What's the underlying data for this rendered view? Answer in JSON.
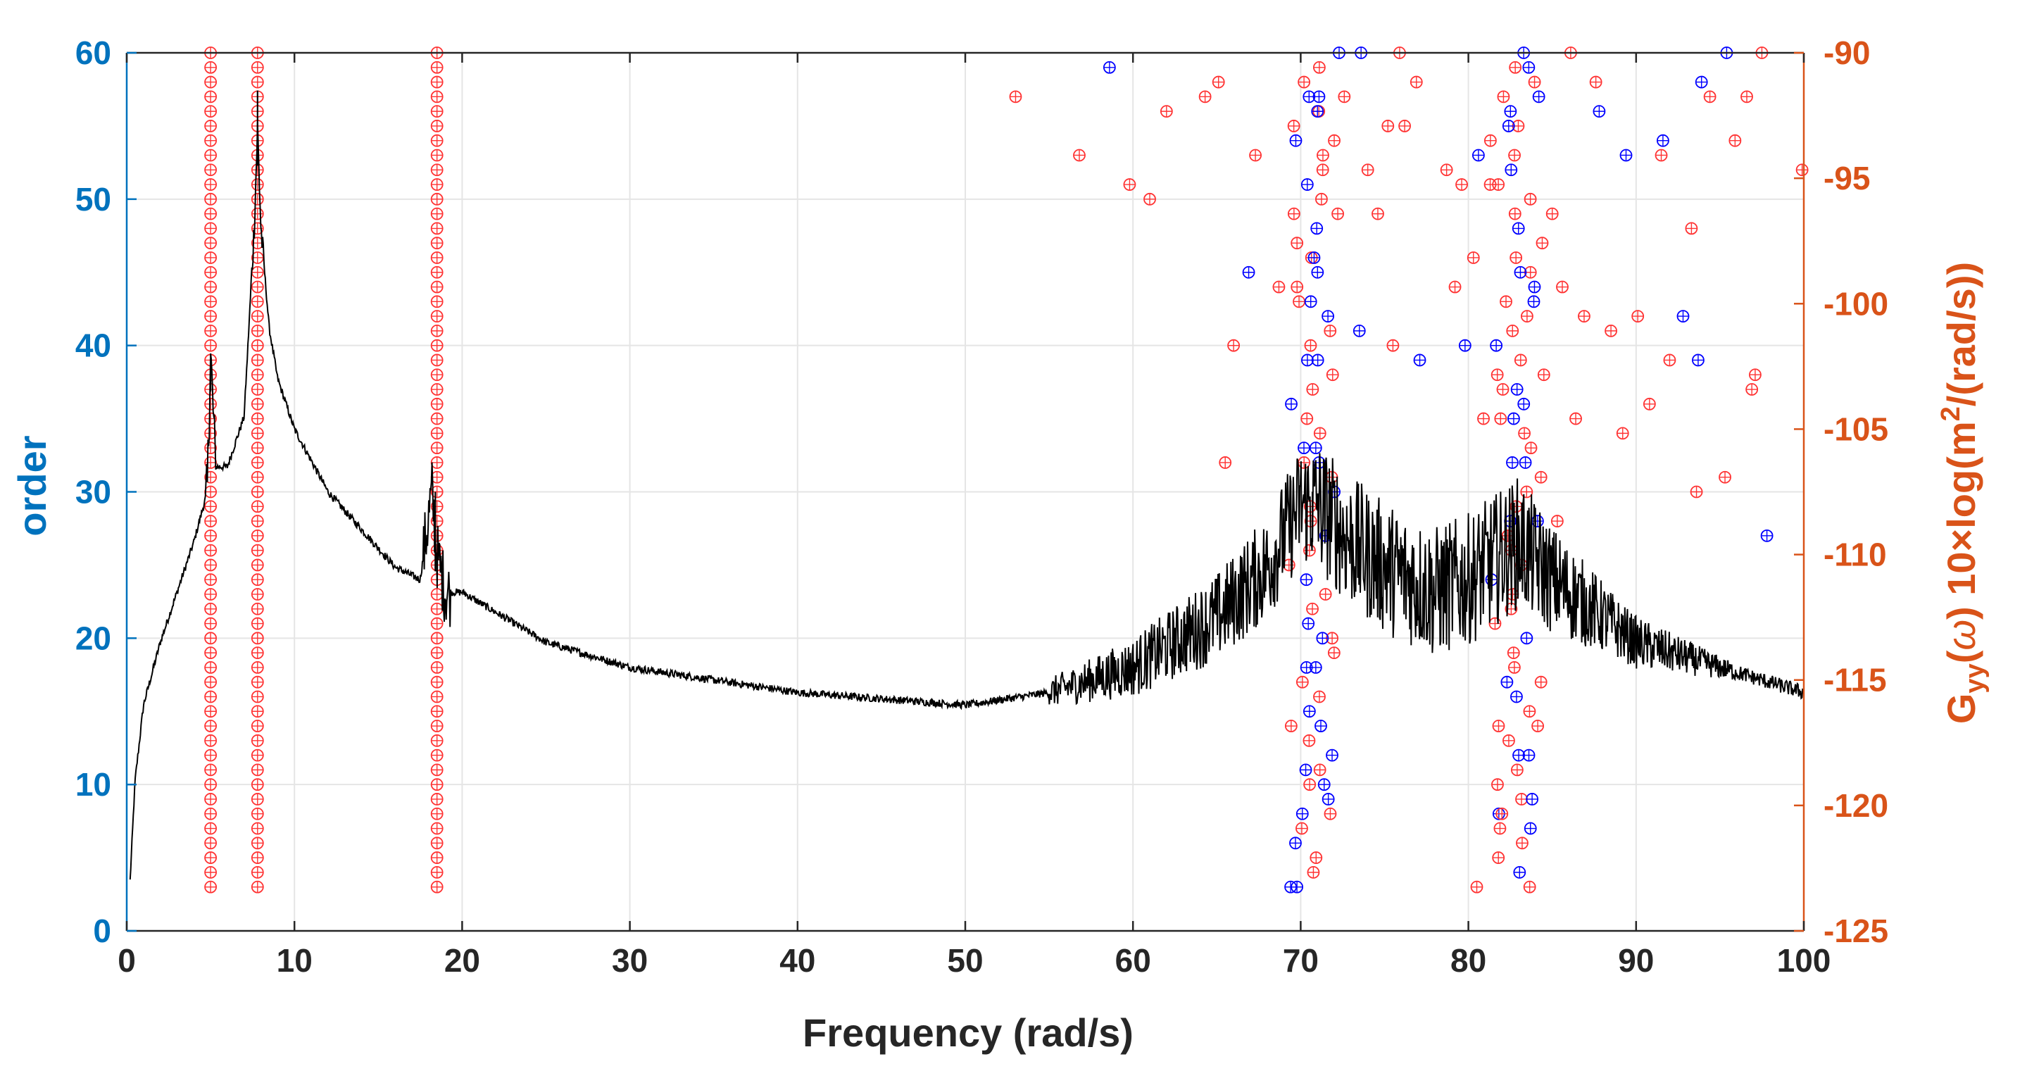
{
  "chart_data": {
    "type": "line+scatter",
    "title": "",
    "xlabel": "Frequency (rad/s)",
    "ylabel_left": "order",
    "ylabel_right_parts": [
      "G",
      "yy",
      "(",
      "ω",
      ")",
      "  10×log(m",
      "2",
      "/(rad/s))"
    ],
    "xlim": [
      0,
      100
    ],
    "ylim_left": [
      0,
      60
    ],
    "ylim_right": [
      -125,
      -90
    ],
    "x_ticks": [
      "0",
      "10",
      "20",
      "30",
      "40",
      "50",
      "60",
      "70",
      "80",
      "90",
      "100"
    ],
    "y_ticks_left": [
      "0",
      "10",
      "20",
      "30",
      "40",
      "50",
      "60"
    ],
    "y_ticks_right": [
      "-125",
      "-120",
      "-115",
      "-110",
      "-105",
      "-100",
      "-95",
      "-90"
    ],
    "grid": true,
    "colors": {
      "left_axis": "#0072BD",
      "right_axis": "#D95319",
      "psd_line": "#000000",
      "stable_marker": "#0000FF",
      "unstable_marker": "#FF3333",
      "grid": "#E5E5E5",
      "axis": "#262626"
    },
    "psd_series": {
      "name": "Gyy(ω) 10×log(m²/(rad/s))",
      "axis": "right",
      "x": [
        0.2,
        0.5,
        1,
        2,
        3,
        4,
        4.8,
        5.0,
        5.3,
        6.0,
        7.0,
        7.6,
        7.8,
        8.0,
        8.5,
        9,
        10,
        12,
        14,
        16,
        17.5,
        18.2,
        18.5,
        19.0,
        20,
        25,
        30,
        40,
        50,
        55,
        60,
        65,
        68,
        70,
        71,
        73,
        75,
        78,
        80,
        82,
        83,
        85,
        88,
        90,
        95,
        100
      ],
      "y": [
        -123,
        -119,
        -116,
        -113.5,
        -111.5,
        -109.5,
        -107.5,
        -102,
        -106.5,
        -106.5,
        -104.5,
        -97,
        -93,
        -97,
        -101,
        -103,
        -105,
        -107.5,
        -109,
        -110.5,
        -111,
        -107.5,
        -110,
        -111.5,
        -111.5,
        -113.5,
        -114.5,
        -115.5,
        -116,
        -115.5,
        -114.5,
        -112.5,
        -110.5,
        -108,
        -108,
        -109.5,
        -110.5,
        -111.5,
        -111,
        -110,
        -109.5,
        -111,
        -112.5,
        -113.5,
        -114.5,
        -115.5
      ]
    },
    "stabilization_markers": {
      "axis": "left",
      "stable_columns_x": [
        5.0,
        7.8,
        18.5
      ],
      "stable_columns_orders": "3 to 60",
      "scatter": [
        {
          "x": 70.5,
          "order": 57,
          "stable": true
        },
        {
          "x": 71.0,
          "order": 56,
          "stable": true
        },
        {
          "x": 70.8,
          "order": 46,
          "stable": true
        },
        {
          "x": 70.6,
          "order": 43,
          "stable": true
        },
        {
          "x": 70.4,
          "order": 39,
          "stable": true
        },
        {
          "x": 70.9,
          "order": 33,
          "stable": true
        },
        {
          "x": 71.1,
          "order": 32,
          "stable": true
        },
        {
          "x": 71.3,
          "order": 20,
          "stable": true
        },
        {
          "x": 70.9,
          "order": 18,
          "stable": true
        },
        {
          "x": 71.2,
          "order": 14,
          "stable": true
        },
        {
          "x": 70.3,
          "order": 11,
          "stable": true
        },
        {
          "x": 71.4,
          "order": 10,
          "stable": true
        },
        {
          "x": 70.1,
          "order": 8,
          "stable": true
        },
        {
          "x": 69.4,
          "order": 3,
          "stable": true
        },
        {
          "x": 82.4,
          "order": 55,
          "stable": true
        },
        {
          "x": 83.6,
          "order": 59,
          "stable": true
        },
        {
          "x": 84.2,
          "order": 57,
          "stable": true
        },
        {
          "x": 83.1,
          "order": 45,
          "stable": true
        },
        {
          "x": 83.9,
          "order": 43,
          "stable": true
        },
        {
          "x": 82.9,
          "order": 37,
          "stable": true
        },
        {
          "x": 82.7,
          "order": 35,
          "stable": true
        },
        {
          "x": 83.4,
          "order": 32,
          "stable": true
        },
        {
          "x": 82.5,
          "order": 28,
          "stable": true
        },
        {
          "x": 82.3,
          "order": 17,
          "stable": true
        },
        {
          "x": 83.0,
          "order": 12,
          "stable": true
        },
        {
          "x": 83.8,
          "order": 9,
          "stable": true
        },
        {
          "x": 83.7,
          "order": 7,
          "stable": true
        },
        {
          "x": 58.6,
          "order": 59,
          "stable": true
        },
        {
          "x": 66.9,
          "order": 45,
          "stable": true
        },
        {
          "x": 73.5,
          "order": 41,
          "stable": true
        },
        {
          "x": 77.1,
          "order": 39,
          "stable": true
        },
        {
          "x": 79.8,
          "order": 40,
          "stable": true
        },
        {
          "x": 80.6,
          "order": 53,
          "stable": true
        },
        {
          "x": 87.8,
          "order": 56,
          "stable": true
        },
        {
          "x": 89.4,
          "order": 53,
          "stable": true
        },
        {
          "x": 91.6,
          "order": 54,
          "stable": true
        },
        {
          "x": 92.8,
          "order": 42,
          "stable": true
        },
        {
          "x": 93.9,
          "order": 58,
          "stable": true
        },
        {
          "x": 93.7,
          "order": 39,
          "stable": true
        },
        {
          "x": 97.8,
          "order": 27,
          "stable": true
        },
        {
          "x": 95.4,
          "order": 60,
          "stable": true
        },
        {
          "x": 73.6,
          "order": 60,
          "stable": true
        },
        {
          "x": 53.0,
          "order": 57,
          "stable": false
        },
        {
          "x": 56.8,
          "order": 53,
          "stable": false
        },
        {
          "x": 59.8,
          "order": 51,
          "stable": false
        },
        {
          "x": 61.0,
          "order": 50,
          "stable": false
        },
        {
          "x": 62.0,
          "order": 56,
          "stable": false
        },
        {
          "x": 64.3,
          "order": 57,
          "stable": false
        },
        {
          "x": 65.1,
          "order": 58,
          "stable": false
        },
        {
          "x": 65.5,
          "order": 32,
          "stable": false
        },
        {
          "x": 66.0,
          "order": 40,
          "stable": false
        },
        {
          "x": 67.3,
          "order": 53,
          "stable": false
        },
        {
          "x": 68.7,
          "order": 44,
          "stable": false
        },
        {
          "x": 69.6,
          "order": 49,
          "stable": false
        },
        {
          "x": 72.0,
          "order": 54,
          "stable": false
        },
        {
          "x": 72.6,
          "order": 57,
          "stable": false
        },
        {
          "x": 74.0,
          "order": 52,
          "stable": false
        },
        {
          "x": 74.6,
          "order": 49,
          "stable": false
        },
        {
          "x": 75.2,
          "order": 55,
          "stable": false
        },
        {
          "x": 75.5,
          "order": 40,
          "stable": false
        },
        {
          "x": 75.9,
          "order": 60,
          "stable": false
        },
        {
          "x": 76.2,
          "order": 55,
          "stable": false
        },
        {
          "x": 76.9,
          "order": 58,
          "stable": false
        },
        {
          "x": 78.7,
          "order": 52,
          "stable": false
        },
        {
          "x": 79.2,
          "order": 44,
          "stable": false
        },
        {
          "x": 79.6,
          "order": 51,
          "stable": false
        },
        {
          "x": 80.3,
          "order": 46,
          "stable": false
        },
        {
          "x": 80.5,
          "order": 3,
          "stable": false
        },
        {
          "x": 80.9,
          "order": 35,
          "stable": false
        },
        {
          "x": 81.3,
          "order": 51,
          "stable": false
        },
        {
          "x": 81.8,
          "order": 14,
          "stable": false
        },
        {
          "x": 82.0,
          "order": 8,
          "stable": false
        },
        {
          "x": 84.5,
          "order": 38,
          "stable": false
        },
        {
          "x": 85.0,
          "order": 49,
          "stable": false
        },
        {
          "x": 85.3,
          "order": 28,
          "stable": false
        },
        {
          "x": 85.6,
          "order": 44,
          "stable": false
        },
        {
          "x": 86.1,
          "order": 60,
          "stable": false
        },
        {
          "x": 86.4,
          "order": 35,
          "stable": false
        },
        {
          "x": 86.9,
          "order": 42,
          "stable": false
        },
        {
          "x": 87.6,
          "order": 58,
          "stable": false
        },
        {
          "x": 88.5,
          "order": 41,
          "stable": false
        },
        {
          "x": 89.2,
          "order": 34,
          "stable": false
        },
        {
          "x": 90.1,
          "order": 42,
          "stable": false
        },
        {
          "x": 90.8,
          "order": 36,
          "stable": false
        },
        {
          "x": 91.5,
          "order": 53,
          "stable": false
        },
        {
          "x": 92.0,
          "order": 39,
          "stable": false
        },
        {
          "x": 93.3,
          "order": 48,
          "stable": false
        },
        {
          "x": 93.6,
          "order": 30,
          "stable": false
        },
        {
          "x": 94.4,
          "order": 57,
          "stable": false
        },
        {
          "x": 95.3,
          "order": 31,
          "stable": false
        },
        {
          "x": 95.9,
          "order": 54,
          "stable": false
        },
        {
          "x": 96.6,
          "order": 57,
          "stable": false
        },
        {
          "x": 96.9,
          "order": 37,
          "stable": false
        },
        {
          "x": 97.1,
          "order": 38,
          "stable": false
        },
        {
          "x": 97.5,
          "order": 60,
          "stable": false
        },
        {
          "x": 99.9,
          "order": 52,
          "stable": false
        }
      ]
    }
  }
}
